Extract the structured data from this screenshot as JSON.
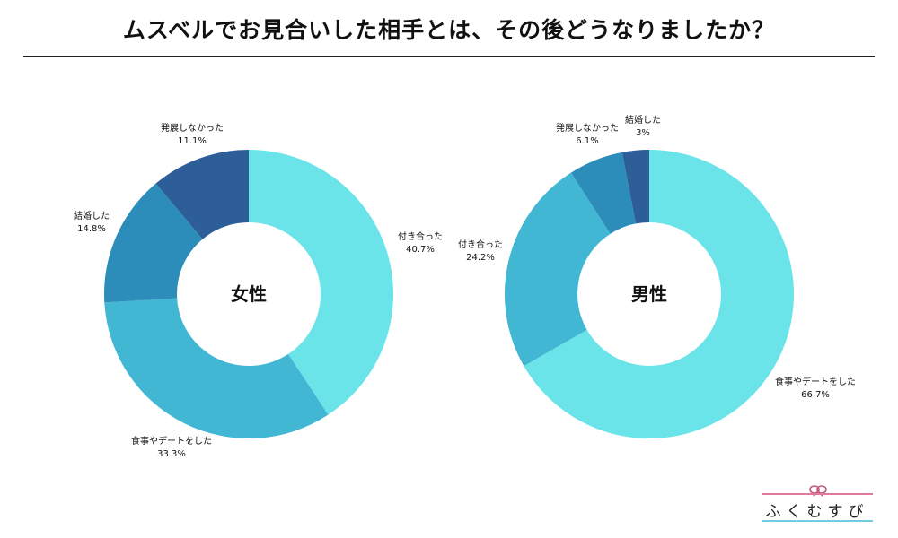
{
  "title": "ムスベルでお見合いした相手とは、その後どうなりましたか？",
  "colors": {
    "tsukiatta_female": "#6ae4e8",
    "shokuji": "#41b7d4",
    "kekkon": "#2c8cba",
    "hatten_nashi": "#2d5e98",
    "shokuji_male": "#6ae4e8",
    "tsukiatta_male": "#41b7d4",
    "hatten_nashi_male": "#2c8cba",
    "kekkon_male": "#2d5e98"
  },
  "chart_data": [
    {
      "type": "pie",
      "donut": true,
      "center_label": "女性",
      "slices": [
        {
          "label": "付き合った",
          "value": 40.7,
          "display": "40.7%",
          "color": "#6ae4e8"
        },
        {
          "label": "食事やデートをした",
          "value": 33.3,
          "display": "33.3%",
          "color": "#41b7d4"
        },
        {
          "label": "結婚した",
          "value": 14.8,
          "display": "14.8%",
          "color": "#2c8cba"
        },
        {
          "label": "発展しなかった",
          "value": 11.1,
          "display": "11.1%",
          "color": "#2d5e98"
        }
      ]
    },
    {
      "type": "pie",
      "donut": true,
      "center_label": "男性",
      "slices": [
        {
          "label": "食事やデートをした",
          "value": 66.7,
          "display": "66.7%",
          "color": "#6ae4e8"
        },
        {
          "label": "付き合った",
          "value": 24.2,
          "display": "24.2%",
          "color": "#41b7d4"
        },
        {
          "label": "発展しなかった",
          "value": 6.1,
          "display": "6.1%",
          "color": "#2c8cba"
        },
        {
          "label": "結婚した",
          "value": 3,
          "display": "3%",
          "color": "#2d5e98"
        }
      ]
    }
  ],
  "logo": {
    "text": "ふくむすび"
  }
}
